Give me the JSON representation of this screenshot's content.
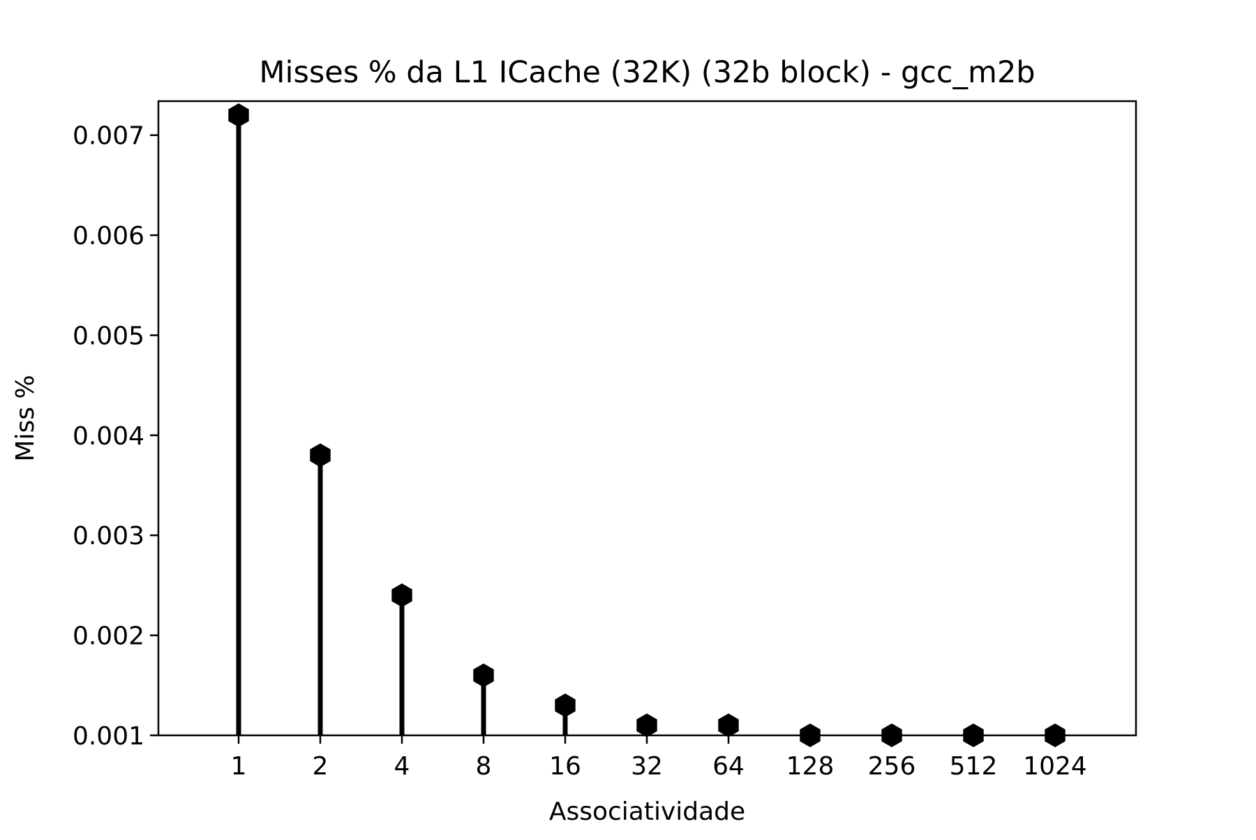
{
  "chart_data": {
    "type": "stem",
    "title": "Misses % da L1 ICache (32K) (32b block) - gcc_m2b",
    "xlabel": "Associatividade",
    "ylabel": "Miss %",
    "categories": [
      "1",
      "2",
      "4",
      "8",
      "16",
      "32",
      "64",
      "128",
      "256",
      "512",
      "1024"
    ],
    "series": [
      {
        "values": [
          0.0072,
          0.0038,
          0.0024,
          0.0016,
          0.0013,
          0.0011,
          0.0011,
          0.001,
          0.001,
          0.001,
          0.001
        ],
        "color": "#000000",
        "marker": "hexagon"
      }
    ],
    "ylim": [
      0.001,
      0.00734
    ],
    "yticks": [
      0.001,
      0.002,
      0.003,
      0.004,
      0.005,
      0.006,
      0.007
    ],
    "ytick_labels": [
      "0.001",
      "0.002",
      "0.003",
      "0.004",
      "0.005",
      "0.006",
      "0.007"
    ],
    "grid": false,
    "legend": "none"
  }
}
